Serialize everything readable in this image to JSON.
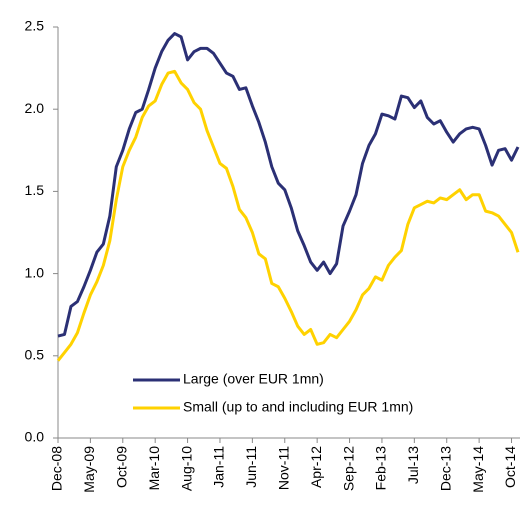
{
  "chart_data": {
    "type": "line",
    "categories": [
      "Dec-08",
      null,
      null,
      null,
      null,
      "May-09",
      null,
      null,
      null,
      null,
      "Oct-09",
      null,
      null,
      null,
      null,
      "Mar-10",
      null,
      null,
      null,
      null,
      "Aug-10",
      null,
      null,
      null,
      null,
      "Jan-11",
      null,
      null,
      null,
      null,
      "Jun-11",
      null,
      null,
      null,
      null,
      "Nov-11",
      null,
      null,
      null,
      null,
      "Apr-12",
      null,
      null,
      null,
      null,
      "Sep-12",
      null,
      null,
      null,
      null,
      "Feb-13",
      null,
      null,
      null,
      null,
      "Jul-13",
      null,
      null,
      null,
      null,
      "Dec-13",
      null,
      null,
      null,
      null,
      "May-14",
      null,
      null,
      null,
      null,
      "Oct-14",
      null
    ],
    "series": [
      {
        "name": "Large (over EUR 1mn)",
        "color": "#2b3075",
        "values": [
          0.62,
          0.63,
          0.8,
          0.83,
          0.92,
          1.02,
          1.13,
          1.18,
          1.35,
          1.65,
          1.75,
          1.88,
          1.98,
          2.0,
          2.12,
          2.25,
          2.35,
          2.42,
          2.46,
          2.44,
          2.3,
          2.35,
          2.37,
          2.37,
          2.34,
          2.28,
          2.22,
          2.2,
          2.12,
          2.13,
          2.02,
          1.92,
          1.8,
          1.65,
          1.55,
          1.51,
          1.4,
          1.26,
          1.17,
          1.07,
          1.02,
          1.07,
          1.0,
          1.06,
          1.29,
          1.38,
          1.48,
          1.67,
          1.78,
          1.85,
          1.97,
          1.96,
          1.94,
          2.08,
          2.07,
          2.01,
          2.05,
          1.95,
          1.91,
          1.93,
          1.86,
          1.8,
          1.85,
          1.88,
          1.89,
          1.88,
          1.78,
          1.66,
          1.75,
          1.76,
          1.69,
          1.77
        ]
      },
      {
        "name": "Small (up to and including EUR 1mn)",
        "color": "#ffd200",
        "values": [
          0.47,
          0.52,
          0.57,
          0.64,
          0.76,
          0.87,
          0.95,
          1.05,
          1.2,
          1.45,
          1.65,
          1.75,
          1.83,
          1.95,
          2.02,
          2.05,
          2.15,
          2.22,
          2.23,
          2.16,
          2.12,
          2.04,
          2.0,
          1.87,
          1.77,
          1.67,
          1.64,
          1.53,
          1.39,
          1.34,
          1.25,
          1.12,
          1.09,
          0.94,
          0.92,
          0.85,
          0.77,
          0.68,
          0.63,
          0.66,
          0.57,
          0.58,
          0.63,
          0.61,
          0.66,
          0.71,
          0.78,
          0.87,
          0.91,
          0.98,
          0.96,
          1.05,
          1.1,
          1.14,
          1.3,
          1.4,
          1.42,
          1.44,
          1.43,
          1.46,
          1.45,
          1.48,
          1.51,
          1.45,
          1.48,
          1.48,
          1.38,
          1.37,
          1.35,
          1.3,
          1.25,
          1.13
        ]
      }
    ],
    "ylim": [
      0,
      2.5
    ],
    "yticks": [
      {
        "value": 0,
        "label": "0.0"
      },
      0.5,
      {
        "value": 1,
        "label": "1.0"
      },
      1.5,
      {
        "value": 2,
        "label": "2.0"
      },
      2.5
    ],
    "grid": false,
    "legend": "lower-left"
  }
}
